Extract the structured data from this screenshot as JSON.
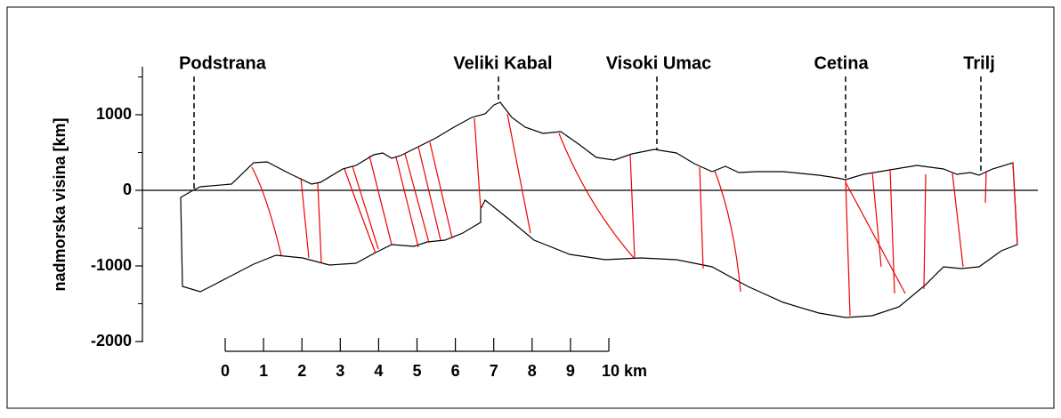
{
  "y_axis": {
    "label": "nadmorska visina [km]",
    "ylim": [
      -2000,
      1650
    ],
    "yticks": [
      {
        "value": 1000,
        "label": "1000"
      },
      0,
      {
        "value": -1000,
        "label": "-1000"
      },
      {
        "value": -2000,
        "label": "-2000"
      }
    ]
  },
  "scale_bar": {
    "ticks": [
      0,
      1,
      2,
      3,
      4,
      5,
      6,
      7,
      8,
      9,
      {
        "value": 10,
        "label": "10 km"
      }
    ]
  },
  "places": [
    {
      "label": "Podstrana"
    },
    {
      "label": "Veliki Kabal"
    },
    {
      "label": "Visoki Umac"
    },
    {
      "label": "Cetina"
    },
    {
      "label": "Trilj"
    }
  ]
}
